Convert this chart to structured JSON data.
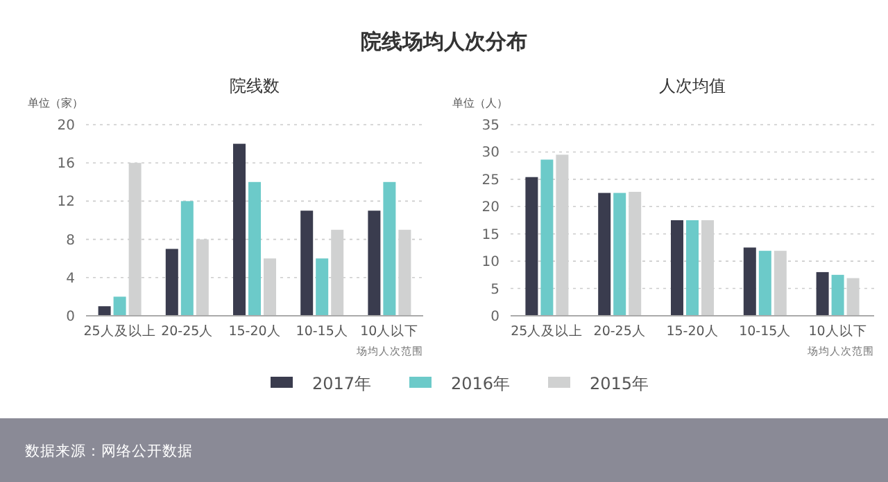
{
  "chart_data": [
    {
      "type": "bar",
      "title": "院线场均人次分布",
      "subtitle": "院线数",
      "ylabel": "单位（家）",
      "xlabel": "场均人次范围",
      "categories": [
        "25人及以上",
        "20-25人",
        "15-20人",
        "10-15人",
        "10人以下"
      ],
      "series": [
        {
          "name": "2017年",
          "color": "#3a3c4e",
          "values": [
            1,
            7,
            18,
            11,
            11
          ]
        },
        {
          "name": "2016年",
          "color": "#6ccac9",
          "values": [
            2,
            12,
            14,
            6,
            14
          ]
        },
        {
          "name": "2015年",
          "color": "#d0d1d1",
          "values": [
            16,
            8,
            6,
            9,
            9
          ]
        }
      ],
      "ylim": [
        0,
        20
      ],
      "yticks": [
        0,
        4,
        8,
        12,
        16,
        20
      ],
      "grid": "y",
      "legend": "bottom",
      "annotations": [
        "数据来源：网络公开数据"
      ]
    },
    {
      "type": "bar",
      "subtitle": "人次均值",
      "ylabel": "单位（人）",
      "xlabel": "场均人次范围",
      "categories": [
        "25人及以上",
        "20-25人",
        "15-20人",
        "10-15人",
        "10人以下"
      ],
      "series": [
        {
          "color": "#3a3c4e",
          "values": [
            25.4,
            22.5,
            17.5,
            12.5,
            8.0
          ]
        },
        {
          "color": "#6ccac9",
          "values": [
            28.6,
            22.5,
            17.5,
            11.9,
            7.5
          ]
        },
        {
          "color": "#d0d1d1",
          "values": [
            29.5,
            22.7,
            17.5,
            11.9,
            6.9
          ]
        }
      ],
      "ylim": [
        0,
        35
      ],
      "yticks": [
        0,
        5,
        10,
        15,
        20,
        25,
        30,
        35
      ],
      "grid": "y"
    }
  ]
}
